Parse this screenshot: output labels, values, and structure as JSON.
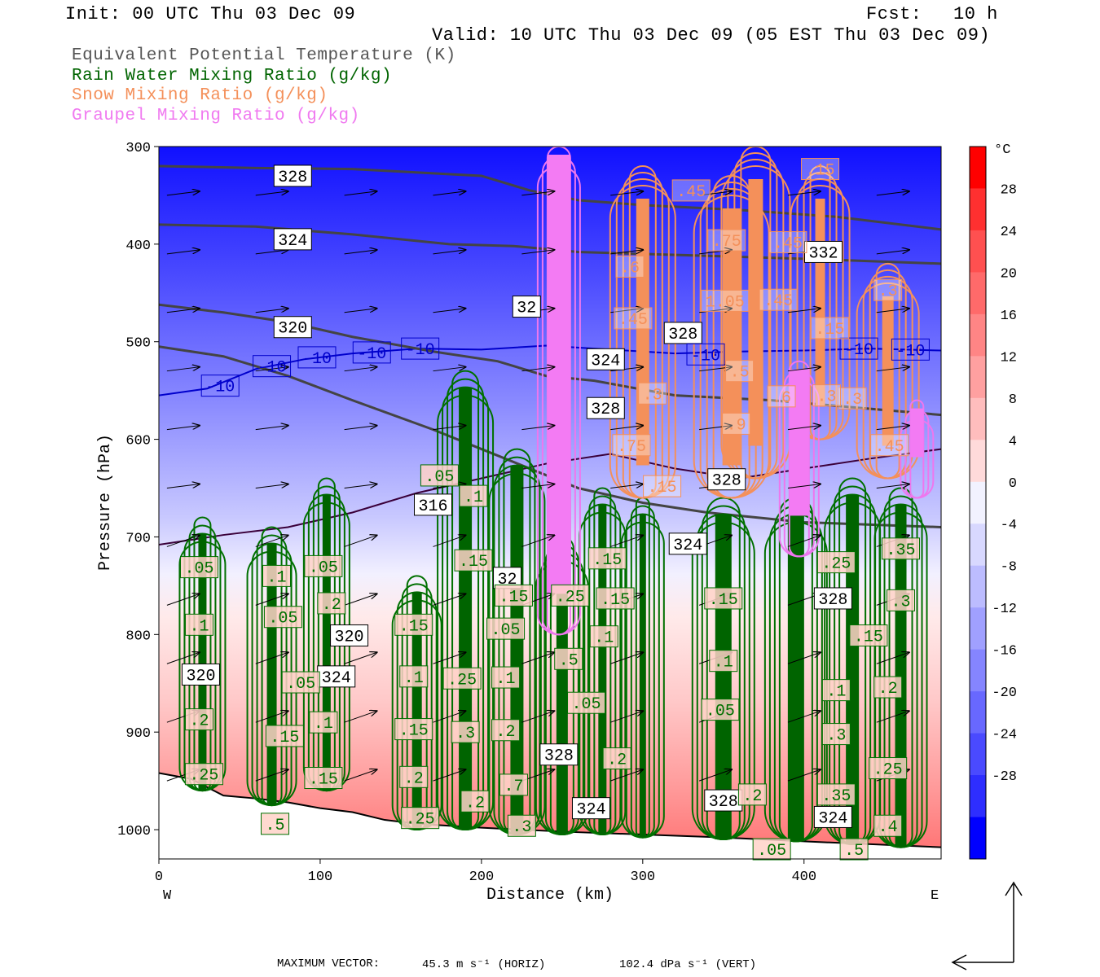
{
  "header": {
    "init": "Init: 00 UTC Thu 03 Dec 09",
    "fcst_label": "Fcst:",
    "fcst_value": "10 h",
    "valid": "Valid: 10 UTC Thu 03 Dec 09 (05 EST Thu 03 Dec 09)"
  },
  "legend": [
    {
      "text": "Equivalent Potential Temperature (K)",
      "color": "#555555"
    },
    {
      "text": "Rain Water Mixing Ratio (g/kg)",
      "color": "#006400"
    },
    {
      "text": "Snow Mixing Ratio (g/kg)",
      "color": "#F4905A"
    },
    {
      "text": "Graupel Mixing Ratio (g/kg)",
      "color": "#F07AF0"
    }
  ],
  "colorbar": {
    "unit": "°C",
    "labels": [
      "28",
      "24",
      "20",
      "16",
      "12",
      "8",
      "4",
      "0",
      "-4",
      "-8",
      "-12",
      "-16",
      "-20",
      "-24",
      "-28"
    ],
    "colors": [
      "#FF0000",
      "#FF3030",
      "#FF5050",
      "#FF6A6A",
      "#FF8585",
      "#FFA0A0",
      "#FFBDBD",
      "#FFDADA",
      "#F2F2FF",
      "#D8D8FF",
      "#BCBCFF",
      "#A0A0FF",
      "#8585FF",
      "#6868FF",
      "#4A4AFF",
      "#2E2EFF",
      "#0000FF"
    ]
  },
  "footer": {
    "max_vector_label": "MAXIMUM VECTOR:",
    "horiz": "45.3 m s⁻¹ (HORIZ)",
    "vert": "102.4 dPa s⁻¹ (VERT)"
  },
  "chart_data": {
    "type": "contour",
    "xlabel": "Distance (km)",
    "ylabel": "Pressure (hPa)",
    "x_ticks": [
      "0",
      "100",
      "200",
      "300",
      "400"
    ],
    "x_tick_values": [
      0,
      100,
      200,
      300,
      400
    ],
    "y_ticks": [
      "300",
      "400",
      "500",
      "600",
      "700",
      "800",
      "900",
      "1000"
    ],
    "y_tick_values": [
      300,
      400,
      500,
      600,
      700,
      800,
      900,
      1000
    ],
    "xlim": [
      0,
      485
    ],
    "ylim": [
      1030,
      300
    ],
    "west_label": "W",
    "east_label": "E",
    "theta_e_labels": [
      {
        "text": "328",
        "x": 83,
        "p": 330
      },
      {
        "text": "324",
        "x": 83,
        "p": 395
      },
      {
        "text": "320",
        "x": 83,
        "p": 485
      },
      {
        "text": "316",
        "x": 170,
        "p": 667
      },
      {
        "text": "320",
        "x": 118,
        "p": 801
      },
      {
        "text": "324",
        "x": 110,
        "p": 843
      },
      {
        "text": "320",
        "x": 26,
        "p": 841
      },
      {
        "text": "324",
        "x": 277,
        "p": 518
      },
      {
        "text": "328",
        "x": 277,
        "p": 568
      },
      {
        "text": "324",
        "x": 328,
        "p": 707
      },
      {
        "text": "328",
        "x": 325,
        "p": 491
      },
      {
        "text": "332",
        "x": 412,
        "p": 408
      },
      {
        "text": "328",
        "x": 352,
        "p": 641
      },
      {
        "text": "328",
        "x": 418,
        "p": 763
      },
      {
        "text": "328",
        "x": 350,
        "p": 970
      },
      {
        "text": "328",
        "x": 248,
        "p": 923
      },
      {
        "text": "324",
        "x": 268,
        "p": 978
      },
      {
        "text": "324",
        "x": 418,
        "p": 987
      },
      {
        "text": "32",
        "x": 228,
        "p": 464
      },
      {
        "text": "32",
        "x": 216,
        "p": 742
      }
    ],
    "temperature_labels": [
      {
        "text": "-10",
        "x": 38,
        "p": 545
      },
      {
        "text": "-10",
        "x": 70,
        "p": 525
      },
      {
        "text": "-10",
        "x": 98,
        "p": 516
      },
      {
        "text": "-10",
        "x": 132,
        "p": 511
      },
      {
        "text": "-10",
        "x": 162,
        "p": 507
      },
      {
        "text": "-10",
        "x": 339,
        "p": 513
      },
      {
        "text": "-10",
        "x": 434,
        "p": 507
      },
      {
        "text": "-10",
        "x": 466,
        "p": 508
      }
    ],
    "rain_labels": [
      {
        "text": ".05",
        "x": 25,
        "p": 731
      },
      {
        "text": ".1",
        "x": 25,
        "p": 790
      },
      {
        "text": ".2",
        "x": 25,
        "p": 887
      },
      {
        "text": ".25",
        "x": 28,
        "p": 943
      },
      {
        "text": ".1",
        "x": 73,
        "p": 740
      },
      {
        "text": ".05",
        "x": 77,
        "p": 782
      },
      {
        "text": ".05",
        "x": 88,
        "p": 849
      },
      {
        "text": ".15",
        "x": 78,
        "p": 904
      },
      {
        "text": ".05",
        "x": 102,
        "p": 730
      },
      {
        "text": ".2",
        "x": 107,
        "p": 768
      },
      {
        "text": ".1",
        "x": 102,
        "p": 890
      },
      {
        "text": ".15",
        "x": 102,
        "p": 947
      },
      {
        "text": ".05",
        "x": 174,
        "p": 637
      },
      {
        "text": ".1",
        "x": 195,
        "p": 658
      },
      {
        "text": ".15",
        "x": 195,
        "p": 724
      },
      {
        "text": ".15",
        "x": 158,
        "p": 790
      },
      {
        "text": ".1",
        "x": 158,
        "p": 843
      },
      {
        "text": ".15",
        "x": 158,
        "p": 897
      },
      {
        "text": ".2",
        "x": 158,
        "p": 946
      },
      {
        "text": ".25",
        "x": 162,
        "p": 988
      },
      {
        "text": ".25",
        "x": 188,
        "p": 845
      },
      {
        "text": ".3",
        "x": 190,
        "p": 900
      },
      {
        "text": ".2",
        "x": 196,
        "p": 971
      },
      {
        "text": ".15",
        "x": 220,
        "p": 760
      },
      {
        "text": ".05",
        "x": 215,
        "p": 794
      },
      {
        "text": ".1",
        "x": 215,
        "p": 844
      },
      {
        "text": ".2",
        "x": 215,
        "p": 898
      },
      {
        "text": ".7",
        "x": 220,
        "p": 954
      },
      {
        "text": ".3",
        "x": 225,
        "p": 996
      },
      {
        "text": ".25",
        "x": 255,
        "p": 760
      },
      {
        "text": ".5",
        "x": 254,
        "p": 825
      },
      {
        "text": ".05",
        "x": 265,
        "p": 870
      },
      {
        "text": ".1",
        "x": 276,
        "p": 802
      },
      {
        "text": ".15",
        "x": 278,
        "p": 722
      },
      {
        "text": ".15",
        "x": 283,
        "p": 763
      },
      {
        "text": ".2",
        "x": 284,
        "p": 927
      },
      {
        "text": ".15",
        "x": 350,
        "p": 763
      },
      {
        "text": ".1",
        "x": 350,
        "p": 827
      },
      {
        "text": ".05",
        "x": 348,
        "p": 877
      },
      {
        "text": ".2",
        "x": 368,
        "p": 964
      },
      {
        "text": ".25",
        "x": 420,
        "p": 726
      },
      {
        "text": ".1",
        "x": 420,
        "p": 857
      },
      {
        "text": ".3",
        "x": 420,
        "p": 902
      },
      {
        "text": ".35",
        "x": 420,
        "p": 964
      },
      {
        "text": ".15",
        "x": 440,
        "p": 801
      },
      {
        "text": ".2",
        "x": 452,
        "p": 854
      },
      {
        "text": ".25",
        "x": 452,
        "p": 937
      },
      {
        "text": ".3",
        "x": 460,
        "p": 765
      },
      {
        "text": ".35",
        "x": 460,
        "p": 712
      },
      {
        "text": ".4",
        "x": 452,
        "p": 996
      },
      {
        "text": ".05",
        "x": 380,
        "p": 1020
      },
      {
        "text": ".5",
        "x": 431,
        "p": 1020
      },
      {
        "text": ".5",
        "x": 72,
        "p": 994
      }
    ],
    "snow_labels": [
      {
        "text": ".45",
        "x": 330,
        "p": 345
      },
      {
        "text": ".15",
        "x": 410,
        "p": 323
      },
      {
        "text": ".75",
        "x": 352,
        "p": 396
      },
      {
        "text": ".45",
        "x": 390,
        "p": 398
      },
      {
        "text": ".6",
        "x": 292,
        "p": 423
      },
      {
        "text": "1.05",
        "x": 351,
        "p": 458
      },
      {
        "text": ".45",
        "x": 384,
        "p": 457
      },
      {
        "text": ".45",
        "x": 294,
        "p": 476
      },
      {
        "text": ".15",
        "x": 416,
        "p": 486
      },
      {
        "text": ".3",
        "x": 452,
        "p": 447
      },
      {
        "text": ".3",
        "x": 306,
        "p": 553
      },
      {
        "text": ".5",
        "x": 360,
        "p": 530
      },
      {
        "text": ".9",
        "x": 358,
        "p": 584
      },
      {
        "text": ".75",
        "x": 293,
        "p": 606
      },
      {
        "text": ".15",
        "x": 312,
        "p": 648
      },
      {
        "text": ".6",
        "x": 386,
        "p": 556
      },
      {
        "text": ".3",
        "x": 430,
        "p": 558
      },
      {
        "text": ".3",
        "x": 414,
        "p": 555
      },
      {
        "text": ".45",
        "x": 453,
        "p": 606
      }
    ]
  }
}
